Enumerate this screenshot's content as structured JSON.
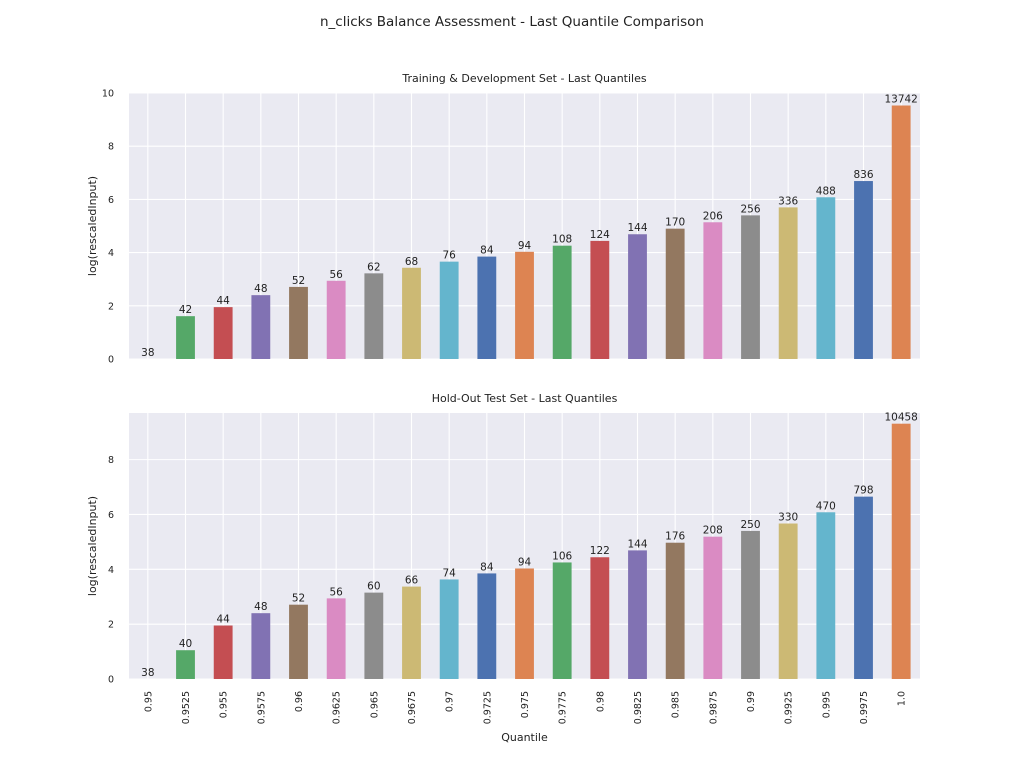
{
  "figure": {
    "suptitle": "n_clicks Balance Assessment - Last Quantile Comparison"
  },
  "palette": [
    "#dd8452",
    "#55a868",
    "#c44e52",
    "#8172b3",
    "#937860",
    "#da8bc3",
    "#8c8c8c",
    "#ccb974",
    "#64b5cd",
    "#4c72b0"
  ],
  "chart_data": [
    {
      "type": "bar",
      "title": "Training & Development Set - Last Quantiles",
      "xlabel": "",
      "ylabel": "log(rescaledInput)",
      "ylim": [
        0,
        10
      ],
      "yticks": [
        0,
        2,
        4,
        6,
        8,
        10
      ],
      "grid": true,
      "categories": [
        "0.95",
        "0.9525",
        "0.955",
        "0.9575",
        "0.96",
        "0.9625",
        "0.965",
        "0.9675",
        "0.97",
        "0.9725",
        "0.975",
        "0.9775",
        "0.98",
        "0.9825",
        "0.985",
        "0.9875",
        "0.99",
        "0.9925",
        "0.995",
        "0.9975",
        "1.0"
      ],
      "values": [
        0.0,
        1.61,
        1.95,
        2.4,
        2.71,
        2.94,
        3.22,
        3.43,
        3.66,
        3.85,
        4.03,
        4.26,
        4.44,
        4.69,
        4.9,
        5.14,
        5.4,
        5.7,
        6.08,
        6.69,
        9.53
      ],
      "labels": [
        "38",
        "42",
        "44",
        "48",
        "52",
        "56",
        "62",
        "68",
        "76",
        "84",
        "94",
        "108",
        "124",
        "144",
        "170",
        "206",
        "256",
        "336",
        "488",
        "836",
        "13742"
      ],
      "show_xticklabels": false
    },
    {
      "type": "bar",
      "title": "Hold-Out Test Set - Last Quantiles",
      "xlabel": "Quantile",
      "ylabel": "log(rescaledInput)",
      "ylim": [
        0,
        9.7
      ],
      "yticks": [
        0,
        2,
        4,
        6,
        8
      ],
      "grid": true,
      "categories": [
        "0.95",
        "0.9525",
        "0.955",
        "0.9575",
        "0.96",
        "0.9625",
        "0.965",
        "0.9675",
        "0.97",
        "0.9725",
        "0.975",
        "0.9775",
        "0.98",
        "0.9825",
        "0.985",
        "0.9875",
        "0.99",
        "0.9925",
        "0.995",
        "0.9975",
        "1.0"
      ],
      "values": [
        0.0,
        1.05,
        1.95,
        2.4,
        2.71,
        2.94,
        3.15,
        3.37,
        3.63,
        3.85,
        4.03,
        4.25,
        4.44,
        4.69,
        4.97,
        5.19,
        5.4,
        5.67,
        6.08,
        6.65,
        9.31
      ],
      "labels": [
        "38",
        "40",
        "44",
        "48",
        "52",
        "56",
        "60",
        "66",
        "74",
        "84",
        "94",
        "106",
        "122",
        "144",
        "176",
        "208",
        "250",
        "330",
        "470",
        "798",
        "10458"
      ],
      "show_xticklabels": true
    }
  ]
}
